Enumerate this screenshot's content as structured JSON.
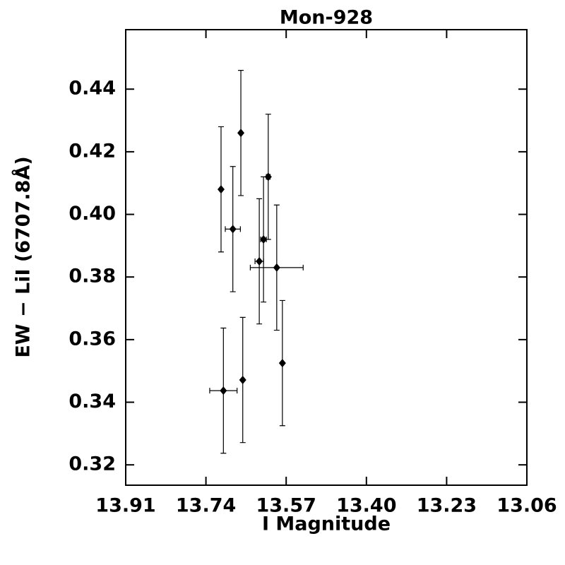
{
  "chart_data": {
    "type": "scatter",
    "title": "Mon-928",
    "x_label": "I Magnitude",
    "y_label": "EW − LiI (6707.8Å)",
    "x": [
      13.708,
      13.666,
      13.683,
      13.608,
      13.618,
      13.627,
      13.59,
      13.578,
      13.703,
      13.662
    ],
    "y": [
      0.408,
      0.426,
      0.3953,
      0.412,
      0.392,
      0.385,
      0.383,
      0.3525,
      0.3437,
      0.3471
    ],
    "y_err": [
      0.02,
      0.02,
      0.02,
      0.02,
      0.02,
      0.02,
      0.02,
      0.02,
      0.02,
      0.02
    ],
    "x_err": [
      0,
      0,
      0.016,
      0.004,
      0.006,
      0.009,
      0.056,
      0,
      0.029,
      0
    ],
    "color": "#000000",
    "xlim": [
      13.91,
      13.06
    ],
    "xticks": [
      13.91,
      13.74,
      13.57,
      {
        "value": 13.4,
        "label": "13.40"
      },
      13.23,
      13.06
    ],
    "ylim": [
      0.3135,
      0.459
    ],
    "yticks": [
      0.32,
      0.34,
      0.36,
      0.38,
      {
        "value": 0.4,
        "label": "0.40"
      },
      0.42,
      0.44
    ]
  }
}
